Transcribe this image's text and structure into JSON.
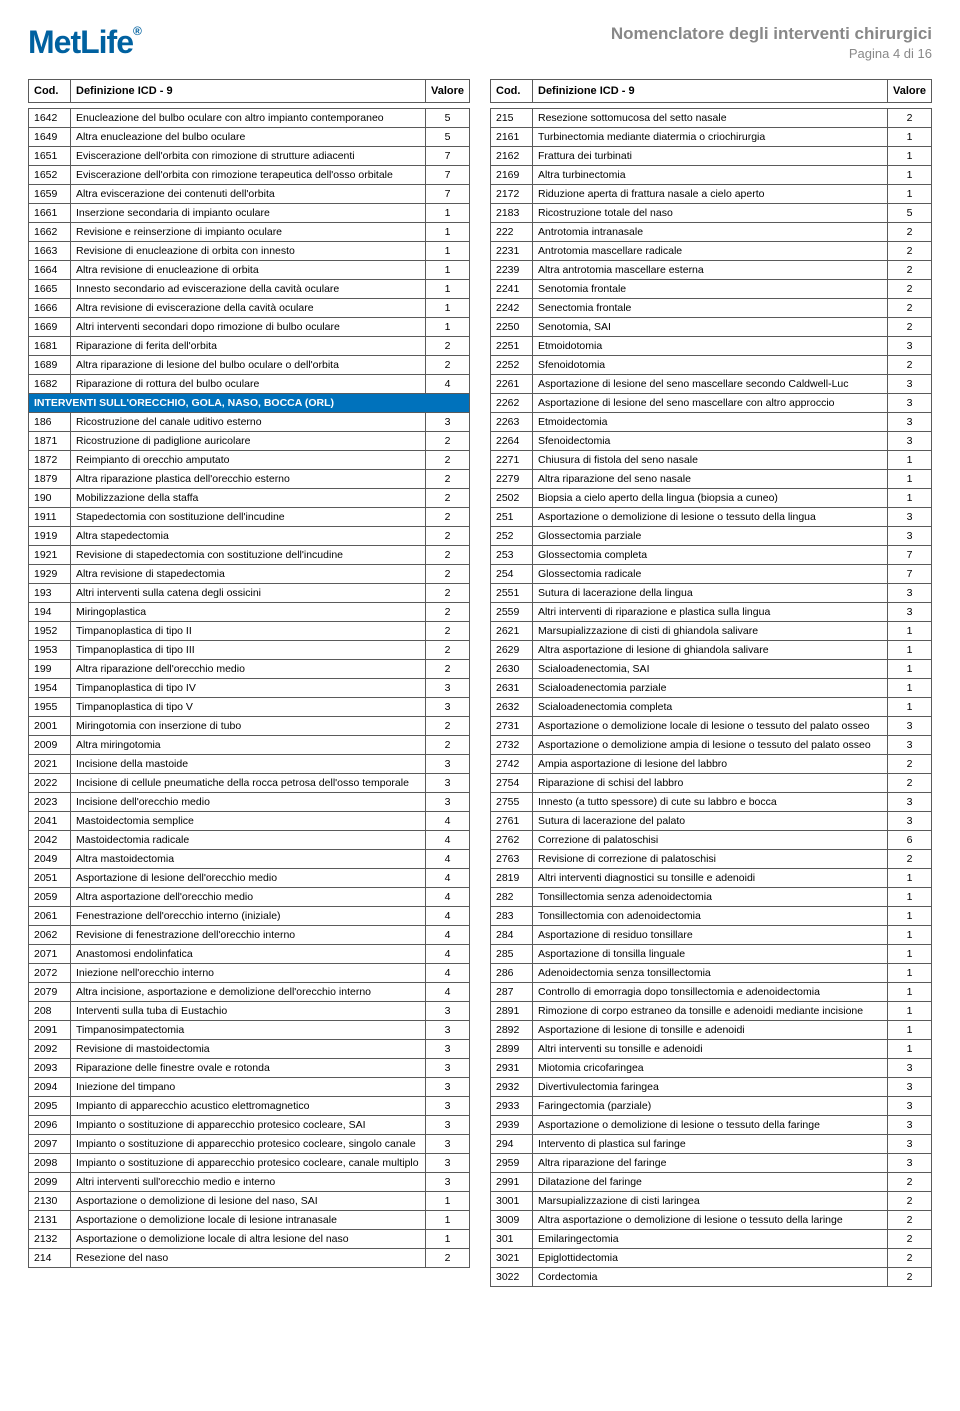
{
  "header": {
    "logo": "MetLife",
    "title": "Nomenclatore degli interventi chirurgici",
    "page_label": "Pagina 4 di 16"
  },
  "table_headers": {
    "cod": "Cod.",
    "def": "Definizione ICD - 9",
    "val": "Valore"
  },
  "colors": {
    "brand": "#0061a0",
    "section_bg": "#0072bc",
    "section_fg": "#ffffff",
    "border": "#5a5a5a",
    "muted": "#888888"
  },
  "left_rows": [
    {
      "cod": "1642",
      "def": "Enucleazione del bulbo oculare con altro impianto contemporaneo",
      "val": "5"
    },
    {
      "cod": "1649",
      "def": "Altra enucleazione del bulbo oculare",
      "val": "5"
    },
    {
      "cod": "1651",
      "def": "Eviscerazione dell'orbita con rimozione di strutture adiacenti",
      "val": "7"
    },
    {
      "cod": "1652",
      "def": "Eviscerazione dell'orbita con rimozione terapeutica dell'osso orbitale",
      "val": "7"
    },
    {
      "cod": "1659",
      "def": "Altra eviscerazione dei contenuti dell'orbita",
      "val": "7"
    },
    {
      "cod": "1661",
      "def": "Inserzione secondaria di impianto oculare",
      "val": "1"
    },
    {
      "cod": "1662",
      "def": "Revisione e reinserzione di impianto oculare",
      "val": "1"
    },
    {
      "cod": "1663",
      "def": "Revisione di enucleazione di orbita con innesto",
      "val": "1"
    },
    {
      "cod": "1664",
      "def": "Altra revisione di enucleazione di orbita",
      "val": "1"
    },
    {
      "cod": "1665",
      "def": "Innesto secondario ad eviscerazione della cavità oculare",
      "val": "1"
    },
    {
      "cod": "1666",
      "def": "Altra revisione di eviscerazione della cavità oculare",
      "val": "1"
    },
    {
      "cod": "1669",
      "def": "Altri interventi secondari dopo rimozione di bulbo oculare",
      "val": "1"
    },
    {
      "cod": "1681",
      "def": "Riparazione di ferita dell'orbita",
      "val": "2"
    },
    {
      "cod": "1689",
      "def": "Altra riparazione di lesione del bulbo oculare o dell'orbita",
      "val": "2"
    },
    {
      "cod": "1682",
      "def": "Riparazione di rottura del bulbo oculare",
      "val": "4"
    },
    {
      "section": "INTERVENTI SULL'ORECCHIO, GOLA, NASO, BOCCA (ORL)"
    },
    {
      "cod": "186",
      "def": "Ricostruzione del canale uditivo esterno",
      "val": "3"
    },
    {
      "cod": "1871",
      "def": "Ricostruzione di padiglione auricolare",
      "val": "2"
    },
    {
      "cod": "1872",
      "def": "Reimpianto di orecchio amputato",
      "val": "2"
    },
    {
      "cod": "1879",
      "def": "Altra riparazione plastica dell'orecchio esterno",
      "val": "2"
    },
    {
      "cod": "190",
      "def": "Mobilizzazione della staffa",
      "val": "2"
    },
    {
      "cod": "1911",
      "def": "Stapedectomia con sostituzione dell'incudine",
      "val": "2"
    },
    {
      "cod": "1919",
      "def": "Altra stapedectomia",
      "val": "2"
    },
    {
      "cod": "1921",
      "def": "Revisione di stapedectomia con sostituzione dell'incudine",
      "val": "2"
    },
    {
      "cod": "1929",
      "def": "Altra revisione di stapedectomia",
      "val": "2"
    },
    {
      "cod": "193",
      "def": "Altri interventi sulla catena degli ossicini",
      "val": "2"
    },
    {
      "cod": "194",
      "def": "Miringoplastica",
      "val": "2"
    },
    {
      "cod": "1952",
      "def": "Timpanoplastica di tipo II",
      "val": "2"
    },
    {
      "cod": "1953",
      "def": "Timpanoplastica di tipo III",
      "val": "2"
    },
    {
      "cod": "199",
      "def": "Altra riparazione dell'orecchio medio",
      "val": "2"
    },
    {
      "cod": "1954",
      "def": "Timpanoplastica di tipo IV",
      "val": "3"
    },
    {
      "cod": "1955",
      "def": "Timpanoplastica di tipo V",
      "val": "3"
    },
    {
      "cod": "2001",
      "def": "Miringotomia con inserzione di tubo",
      "val": "2"
    },
    {
      "cod": "2009",
      "def": "Altra miringotomia",
      "val": "2"
    },
    {
      "cod": "2021",
      "def": "Incisione della mastoide",
      "val": "3"
    },
    {
      "cod": "2022",
      "def": "Incisione di cellule pneumatiche della rocca petrosa dell'osso temporale",
      "val": "3"
    },
    {
      "cod": "2023",
      "def": "Incisione dell'orecchio medio",
      "val": "3"
    },
    {
      "cod": "2041",
      "def": "Mastoidectomia semplice",
      "val": "4"
    },
    {
      "cod": "2042",
      "def": "Mastoidectomia radicale",
      "val": "4"
    },
    {
      "cod": "2049",
      "def": "Altra mastoidectomia",
      "val": "4"
    },
    {
      "cod": "2051",
      "def": "Asportazione di lesione dell'orecchio medio",
      "val": "4"
    },
    {
      "cod": "2059",
      "def": "Altra asportazione dell'orecchio medio",
      "val": "4"
    },
    {
      "cod": "2061",
      "def": "Fenestrazione dell'orecchio interno (iniziale)",
      "val": "4"
    },
    {
      "cod": "2062",
      "def": "Revisione di fenestrazione dell'orecchio interno",
      "val": "4"
    },
    {
      "cod": "2071",
      "def": "Anastomosi endolinfatica",
      "val": "4"
    },
    {
      "cod": "2072",
      "def": "Iniezione nell'orecchio interno",
      "val": "4"
    },
    {
      "cod": "2079",
      "def": "Altra incisione, asportazione e demolizione dell'orecchio interno",
      "val": "4"
    },
    {
      "cod": "208",
      "def": "Interventi sulla tuba di Eustachio",
      "val": "3"
    },
    {
      "cod": "2091",
      "def": "Timpanosimpatectomia",
      "val": "3"
    },
    {
      "cod": "2092",
      "def": "Revisione di mastoidectomia",
      "val": "3"
    },
    {
      "cod": "2093",
      "def": "Riparazione delle finestre ovale e rotonda",
      "val": "3"
    },
    {
      "cod": "2094",
      "def": "Iniezione del timpano",
      "val": "3"
    },
    {
      "cod": "2095",
      "def": "Impianto di apparecchio acustico elettromagnetico",
      "val": "3"
    },
    {
      "cod": "2096",
      "def": "Impianto o sostituzione di apparecchio protesico cocleare, SAI",
      "val": "3"
    },
    {
      "cod": "2097",
      "def": "Impianto o sostituzione di apparecchio protesico cocleare, singolo canale",
      "val": "3"
    },
    {
      "cod": "2098",
      "def": "Impianto o sostituzione di apparecchio protesico cocleare, canale multiplo",
      "val": "3"
    },
    {
      "cod": "2099",
      "def": "Altri interventi sull'orecchio medio e interno",
      "val": "3"
    },
    {
      "cod": "2130",
      "def": "Asportazione o demolizione di lesione del naso, SAI",
      "val": "1"
    },
    {
      "cod": "2131",
      "def": "Asportazione o demolizione locale di lesione intranasale",
      "val": "1"
    },
    {
      "cod": "2132",
      "def": "Asportazione o demolizione locale di altra lesione del naso",
      "val": "1"
    },
    {
      "cod": "214",
      "def": "Resezione del naso",
      "val": "2"
    }
  ],
  "right_rows": [
    {
      "cod": "215",
      "def": "Resezione sottomucosa del setto nasale",
      "val": "2"
    },
    {
      "cod": "2161",
      "def": "Turbinectomia mediante diatermia o criochirurgia",
      "val": "1"
    },
    {
      "cod": "2162",
      "def": "Frattura dei turbinati",
      "val": "1"
    },
    {
      "cod": "2169",
      "def": "Altra turbinectomia",
      "val": "1"
    },
    {
      "cod": "2172",
      "def": "Riduzione aperta di frattura nasale a cielo aperto",
      "val": "1"
    },
    {
      "cod": "2183",
      "def": "Ricostruzione totale del naso",
      "val": "5"
    },
    {
      "cod": "222",
      "def": "Antrotomia intranasale",
      "val": "2"
    },
    {
      "cod": "2231",
      "def": "Antrotomia mascellare radicale",
      "val": "2"
    },
    {
      "cod": "2239",
      "def": "Altra antrotomia mascellare esterna",
      "val": "2"
    },
    {
      "cod": "2241",
      "def": "Senotomia frontale",
      "val": "2"
    },
    {
      "cod": "2242",
      "def": "Senectomia frontale",
      "val": "2"
    },
    {
      "cod": "2250",
      "def": "Senotomia, SAI",
      "val": "2"
    },
    {
      "cod": "2251",
      "def": "Etmoidotomia",
      "val": "3"
    },
    {
      "cod": "2252",
      "def": "Sfenoidotomia",
      "val": "2"
    },
    {
      "cod": "2261",
      "def": "Asportazione di lesione del seno mascellare secondo Caldwell-Luc",
      "val": "3"
    },
    {
      "cod": "2262",
      "def": "Asportazione di lesione del seno mascellare con altro approccio",
      "val": "3"
    },
    {
      "cod": "2263",
      "def": "Etmoidectomia",
      "val": "3"
    },
    {
      "cod": "2264",
      "def": "Sfenoidectomia",
      "val": "3"
    },
    {
      "cod": "2271",
      "def": "Chiusura di fistola del seno nasale",
      "val": "1"
    },
    {
      "cod": "2279",
      "def": "Altra riparazione del seno nasale",
      "val": "1"
    },
    {
      "cod": "2502",
      "def": "Biopsia a cielo aperto della lingua (biopsia a cuneo)",
      "val": "1"
    },
    {
      "cod": "251",
      "def": "Asportazione o demolizione di lesione o tessuto della lingua",
      "val": "3"
    },
    {
      "cod": "252",
      "def": "Glossectomia parziale",
      "val": "3"
    },
    {
      "cod": "253",
      "def": "Glossectomia completa",
      "val": "7"
    },
    {
      "cod": "254",
      "def": "Glossectomia radicale",
      "val": "7"
    },
    {
      "cod": "2551",
      "def": "Sutura di lacerazione della lingua",
      "val": "3"
    },
    {
      "cod": "2559",
      "def": "Altri interventi di riparazione e plastica sulla lingua",
      "val": "3"
    },
    {
      "cod": "2621",
      "def": "Marsupializzazione di cisti di ghiandola salivare",
      "val": "1"
    },
    {
      "cod": "2629",
      "def": "Altra asportazione di lesione di ghiandola salivare",
      "val": "1"
    },
    {
      "cod": "2630",
      "def": "Scialoadenectomia, SAI",
      "val": "1"
    },
    {
      "cod": "2631",
      "def": "Scialoadenectomia parziale",
      "val": "1"
    },
    {
      "cod": "2632",
      "def": "Scialoadenectomia completa",
      "val": "1"
    },
    {
      "cod": "2731",
      "def": "Asportazione o demolizione locale di lesione o tessuto del palato osseo",
      "val": "3"
    },
    {
      "cod": "2732",
      "def": "Asportazione o demolizione ampia di lesione o tessuto del palato osseo",
      "val": "3"
    },
    {
      "cod": "2742",
      "def": "Ampia asportazione di lesione del labbro",
      "val": "2"
    },
    {
      "cod": "2754",
      "def": "Riparazione di schisi del labbro",
      "val": "2"
    },
    {
      "cod": "2755",
      "def": "Innesto (a tutto spessore) di cute su labbro e bocca",
      "val": "3"
    },
    {
      "cod": "2761",
      "def": "Sutura di lacerazione del palato",
      "val": "3"
    },
    {
      "cod": "2762",
      "def": "Correzione di palatoschisi",
      "val": "6"
    },
    {
      "cod": "2763",
      "def": "Revisione di correzione di palatoschisi",
      "val": "2"
    },
    {
      "cod": "2819",
      "def": "Altri interventi diagnostici su tonsille e adenoidi",
      "val": "1"
    },
    {
      "cod": "282",
      "def": "Tonsillectomia senza adenoidectomia",
      "val": "1"
    },
    {
      "cod": "283",
      "def": "Tonsillectomia con adenoidectomia",
      "val": "1"
    },
    {
      "cod": "284",
      "def": "Asportazione di residuo tonsillare",
      "val": "1"
    },
    {
      "cod": "285",
      "def": "Asportazione di tonsilla linguale",
      "val": "1"
    },
    {
      "cod": "286",
      "def": "Adenoidectomia senza tonsillectomia",
      "val": "1"
    },
    {
      "cod": "287",
      "def": "Controllo di emorragia dopo tonsillectomia e adenoidectomia",
      "val": "1"
    },
    {
      "cod": "2891",
      "def": "Rimozione di corpo estraneo da tonsille e adenoidi mediante incisione",
      "val": "1"
    },
    {
      "cod": "2892",
      "def": "Asportazione di lesione di tonsille e adenoidi",
      "val": "1"
    },
    {
      "cod": "2899",
      "def": "Altri interventi su tonsille e adenoidi",
      "val": "1"
    },
    {
      "cod": "2931",
      "def": "Miotomia cricofaringea",
      "val": "3"
    },
    {
      "cod": "2932",
      "def": "Divertivulectomia faringea",
      "val": "3"
    },
    {
      "cod": "2933",
      "def": "Faringectomia (parziale)",
      "val": "3"
    },
    {
      "cod": "2939",
      "def": "Asportazione o demolizione di lesione o tessuto della faringe",
      "val": "3"
    },
    {
      "cod": "294",
      "def": "Intervento di plastica sul faringe",
      "val": "3"
    },
    {
      "cod": "2959",
      "def": "Altra riparazione del faringe",
      "val": "3"
    },
    {
      "cod": "2991",
      "def": "Dilatazione del faringe",
      "val": "2"
    },
    {
      "cod": "3001",
      "def": "Marsupializzazione di cisti laringea",
      "val": "2"
    },
    {
      "cod": "3009",
      "def": "Altra asportazione o demolizione di lesione o tessuto della laringe",
      "val": "2"
    },
    {
      "cod": "301",
      "def": "Emilaringectomia",
      "val": "2"
    },
    {
      "cod": "3021",
      "def": "Epiglottidectomia",
      "val": "2"
    },
    {
      "cod": "3022",
      "def": "Cordectomia",
      "val": "2"
    }
  ]
}
